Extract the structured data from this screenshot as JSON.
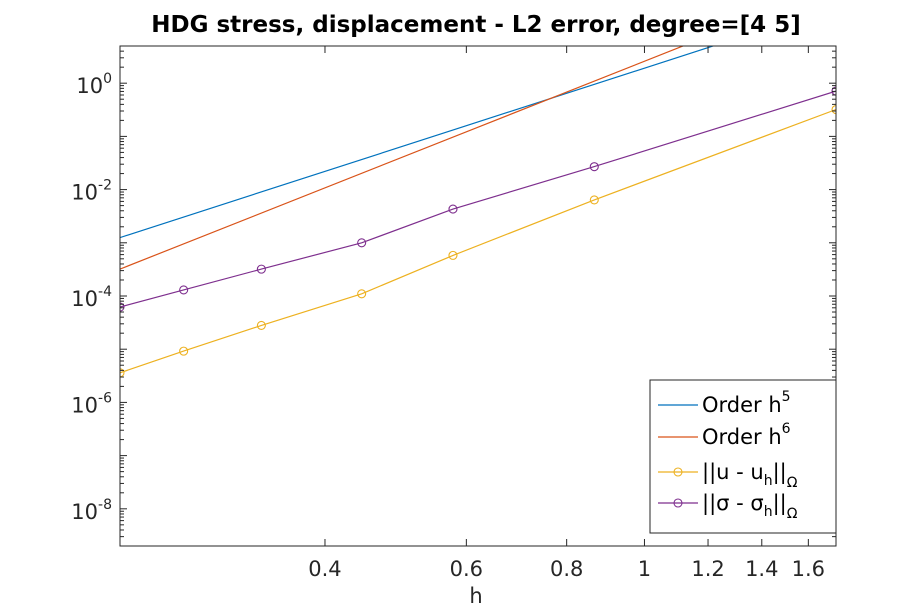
{
  "chart_data": {
    "type": "line",
    "title": "HDG stress, displacement - L2 error, degree=[4  5]",
    "xlabel": "h",
    "ylabel": "",
    "xscale": "log",
    "yscale": "log",
    "xlim": [
      0.2222,
      1.7321
    ],
    "ylim": [
      2e-09,
      5
    ],
    "grid": false,
    "legend_position": "bottom-right",
    "x_ticks": [
      {
        "value": 0.4,
        "label": "0.4"
      },
      {
        "value": 0.6,
        "label": "0.6"
      },
      {
        "value": 0.8,
        "label": "0.8"
      },
      {
        "value": 1,
        "label": "1"
      },
      {
        "value": 1.2,
        "label": "1.2"
      },
      {
        "value": 1.4,
        "label": "1.4"
      },
      {
        "value": 1.6,
        "label": "1.6"
      }
    ],
    "y_ticks": [
      {
        "value": 1,
        "base": "10",
        "exp": "0"
      },
      {
        "value": 0.01,
        "base": "10",
        "exp": "-2"
      },
      {
        "value": 0.0001,
        "base": "10",
        "exp": "-4"
      },
      {
        "value": 1e-06,
        "base": "10",
        "exp": "-6"
      },
      {
        "value": 1e-08,
        "base": "10",
        "exp": "-8"
      }
    ],
    "series": [
      {
        "legend_parts": [
          "Order h",
          "5",
          ""
        ],
        "legend_format": "sup",
        "color": "#0072BD",
        "marker": false,
        "x": [
          0.2222,
          1.3
        ],
        "y": [
          0.00125,
          6.9
        ]
      },
      {
        "legend_parts": [
          "Order h",
          "6",
          ""
        ],
        "legend_format": "sup",
        "color": "#D95319",
        "marker": false,
        "x": [
          0.2222,
          1.3
        ],
        "y": [
          0.00032,
          12.4
        ]
      },
      {
        "legend_parts": [
          "||u - u",
          "h",
          "||",
          "Ω"
        ],
        "legend_format": "sub",
        "color": "#EDB120",
        "marker": true,
        "x": [
          0.2222,
          0.2667,
          0.3333,
          0.4444,
          0.5774,
          0.866,
          1.7321
        ],
        "y": [
          3.6e-06,
          9.2e-06,
          2.8e-05,
          0.00011,
          0.00058,
          0.0064,
          0.32
        ]
      },
      {
        "legend_parts": [
          "||σ - σ",
          "h",
          "||",
          "Ω"
        ],
        "legend_format": "sub",
        "color": "#7E2F8E",
        "marker": true,
        "x": [
          0.2222,
          0.2667,
          0.3333,
          0.4444,
          0.5774,
          0.866,
          1.7321
        ],
        "y": [
          6.2e-05,
          0.00013,
          0.00032,
          0.001,
          0.0043,
          0.027,
          0.71
        ]
      }
    ]
  }
}
